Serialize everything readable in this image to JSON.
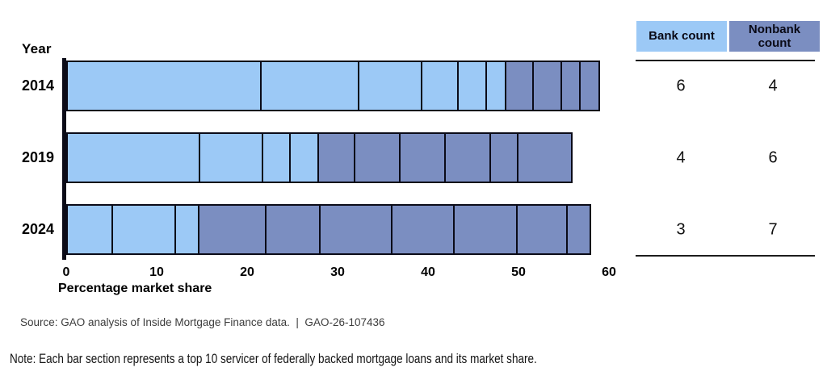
{
  "colors": {
    "bank": "#9cc9f6",
    "nonbank": "#7b8ec1",
    "segment_border": "#0b0b18"
  },
  "y_axis_title": "Year",
  "x_axis_title": "Percentage market share",
  "chart_data": {
    "type": "bar",
    "orientation": "horizontal",
    "stacked": true,
    "title": "",
    "xlabel": "Percentage market share",
    "ylabel": "Year",
    "xlim": [
      0,
      60
    ],
    "x_ticks": [
      0,
      10,
      20,
      30,
      40,
      50,
      60
    ],
    "grid": false,
    "legend_position": "top-right-table",
    "series_names": [
      "Bank servicers (light blue segments)",
      "Nonbank servicers (dark blue segments)"
    ],
    "rows": [
      {
        "year": "2014",
        "bank_segments": [
          22,
          11,
          7,
          4,
          3,
          2
        ],
        "nonbank_segments": [
          3,
          3,
          2,
          2
        ],
        "bank_total": 49,
        "nonbank_total": 10,
        "total": 59,
        "bank_count": 6,
        "nonbank_count": 4
      },
      {
        "year": "2019",
        "bank_segments": [
          15,
          7,
          3,
          3
        ],
        "nonbank_segments": [
          4,
          5,
          5,
          5,
          3,
          6
        ],
        "bank_total": 28,
        "nonbank_total": 28,
        "total": 56,
        "bank_count": 4,
        "nonbank_count": 6
      },
      {
        "year": "2024",
        "bank_segments": [
          5,
          7,
          2.5
        ],
        "nonbank_segments": [
          7.5,
          6,
          8,
          7,
          7,
          5.5,
          2.5
        ],
        "bank_total": 14.5,
        "nonbank_total": 43.5,
        "total": 58,
        "bank_count": 3,
        "nonbank_count": 7
      }
    ]
  },
  "count_table": {
    "headers": [
      "Bank count",
      "Nonbank count"
    ]
  },
  "source": "Source: GAO analysis of Inside Mortgage Finance data.  |  GAO-26-107436",
  "note": "Note: Each bar section represents a top 10 servicer of federally backed mortgage loans and its market share."
}
